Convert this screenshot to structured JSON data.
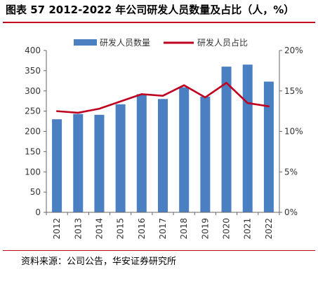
{
  "title": "图表 57 2012-2022 年公司研发人员数量及占比（人，%）",
  "source": "资料来源：公司公告，华安证券研究所",
  "chart_data": {
    "type": "bar",
    "categories": [
      "2012",
      "2013",
      "2014",
      "2015",
      "2016",
      "2017",
      "2018",
      "2019",
      "2020",
      "2021",
      "2022"
    ],
    "series": [
      {
        "name": "研发人员数量",
        "type": "bar",
        "axis": "left",
        "color": "#4a7fc1",
        "values": [
          230,
          243,
          241,
          267,
          292,
          280,
          309,
          286,
          360,
          365,
          323
        ]
      },
      {
        "name": "研发人员占比",
        "type": "line",
        "axis": "right",
        "color": "#c0001f",
        "values": [
          12.5,
          12.3,
          12.8,
          13.7,
          14.6,
          14.4,
          15.7,
          14.2,
          16.0,
          13.5,
          13.1
        ]
      }
    ],
    "ylim": [
      0,
      400
    ],
    "yticks": [
      "0",
      "50",
      "100",
      "150",
      "200",
      "250",
      "300",
      "350",
      "400"
    ],
    "y2lim": [
      0,
      20
    ],
    "y2ticks": [
      "0%",
      "5%",
      "10%",
      "15%",
      "20%"
    ],
    "grid": false,
    "legend_position": "top"
  }
}
